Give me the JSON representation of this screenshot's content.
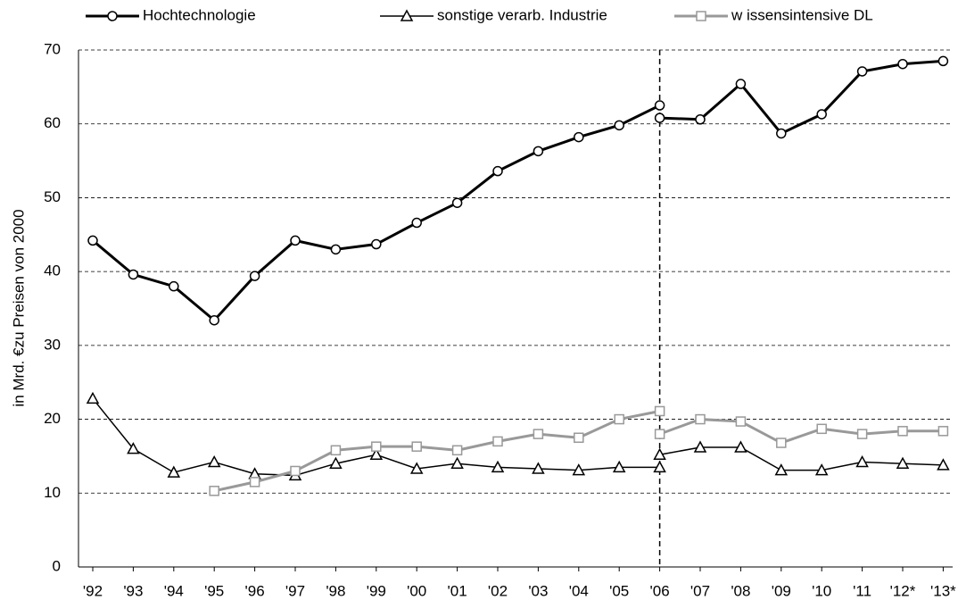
{
  "chart_data": {
    "type": "line",
    "y_label": "in Mrd. €zu Preisen von 2000",
    "categories": [
      "'92",
      "'93",
      "'94",
      "'95",
      "'96",
      "'97",
      "'98",
      "'99",
      "'00",
      "'01",
      "'02",
      "'03",
      "'04",
      "'05",
      "'06",
      null,
      "'07",
      "'08",
      "'09",
      "'10",
      "'11",
      "'12*",
      "'13*"
    ],
    "series": [
      {
        "name": "Hochtechnologie",
        "color": "#000000",
        "marker": "circle",
        "linewidth": 3,
        "values": [
          44.2,
          39.6,
          38,
          33.4,
          39.4,
          44.2,
          43,
          43.7,
          46.6,
          49.3,
          53.6,
          56.3,
          58.2,
          59.8,
          62.5,
          60.8,
          60.6,
          65.4,
          58.7,
          61.3,
          67.1,
          68.1,
          68.5
        ]
      },
      {
        "name": "sonstige verarb. Industrie",
        "color": "#000000",
        "marker": "triangle",
        "linewidth": 1.5,
        "values": [
          22.8,
          16,
          12.8,
          14.2,
          12.6,
          12.4,
          14,
          15.2,
          13.3,
          14,
          13.5,
          13.3,
          13.1,
          13.5,
          13.5,
          15.2,
          16.2,
          16.2,
          13.1,
          13.1,
          14.2,
          14,
          13.8
        ]
      },
      {
        "name": "w issensintensive DL",
        "color": "#999999",
        "marker": "square",
        "linewidth": 3,
        "values": [
          null,
          null,
          null,
          10.3,
          11.5,
          13,
          15.8,
          16.3,
          16.3,
          15.8,
          17,
          18,
          17.5,
          20,
          21.1,
          18,
          20,
          19.7,
          16.8,
          18.7,
          18,
          18.4,
          18.4
        ]
      }
    ],
    "ylim": [
      0,
      70
    ],
    "yticks": [
      0,
      10,
      20,
      30,
      40,
      50,
      60,
      70
    ],
    "grid": true
  }
}
